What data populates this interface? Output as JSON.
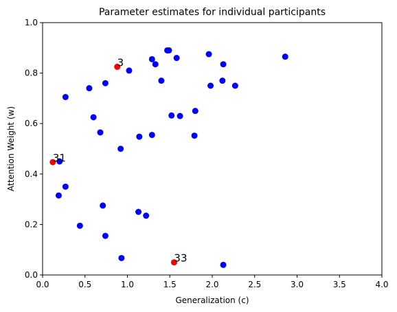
{
  "chart_data": {
    "type": "scatter",
    "title": "Parameter estimates for individual participants",
    "x_label": "Generalization (c)",
    "y_label": "Attention Weight (w)",
    "xlim": [
      0,
      4
    ],
    "ylim": [
      0,
      1
    ],
    "xticks": [
      {
        "value": 0,
        "label": "0.0"
      },
      {
        "value": 0.5,
        "label": "0.5"
      },
      {
        "value": 1,
        "label": "1.0"
      },
      {
        "value": 1.5,
        "label": "1.5"
      },
      {
        "value": 2,
        "label": "2.0"
      },
      {
        "value": 2.5,
        "label": "2.5"
      },
      {
        "value": 3,
        "label": "3.0"
      },
      {
        "value": 3.5,
        "label": "3.5"
      },
      {
        "value": 4,
        "label": "4.0"
      }
    ],
    "yticks": [
      {
        "value": 0,
        "label": "0.0"
      },
      {
        "value": 0.2,
        "label": "0.2"
      },
      {
        "value": 0.4,
        "label": "0.4"
      },
      {
        "value": 0.6,
        "label": "0.6"
      },
      {
        "value": 0.8,
        "label": "0.8"
      },
      {
        "value": 1,
        "label": "1.0"
      }
    ],
    "series": [
      {
        "color": "#0000ff",
        "x": [
          0.27,
          0.55,
          0.74,
          0.6,
          0.68,
          0.92,
          1.02,
          1.29,
          1.33,
          1.47,
          1.49,
          1.58,
          1.4,
          1.96,
          2.13,
          2.86,
          1.98,
          2.12,
          2.27,
          1.52,
          1.62,
          1.8,
          1.79,
          1.14,
          1.29,
          0.2,
          0.27,
          0.19,
          0.71,
          0.44,
          0.74,
          1.13,
          1.22,
          0.93,
          2.13
        ],
        "values": [
          0.705,
          0.74,
          0.76,
          0.625,
          0.565,
          0.5,
          0.81,
          0.855,
          0.835,
          0.89,
          0.89,
          0.86,
          0.77,
          0.875,
          0.835,
          0.865,
          0.75,
          0.77,
          0.75,
          0.632,
          0.63,
          0.65,
          0.552,
          0.548,
          0.555,
          0.45,
          0.35,
          0.315,
          0.275,
          0.195,
          0.155,
          0.25,
          0.235,
          0.067,
          0.04
        ]
      },
      {
        "color": "#ff0000",
        "x": [
          0.12,
          0.88,
          1.55
        ],
        "values": [
          0.447,
          0.825,
          0.05
        ],
        "point_labels": [
          "31",
          "3",
          "33"
        ]
      }
    ]
  }
}
